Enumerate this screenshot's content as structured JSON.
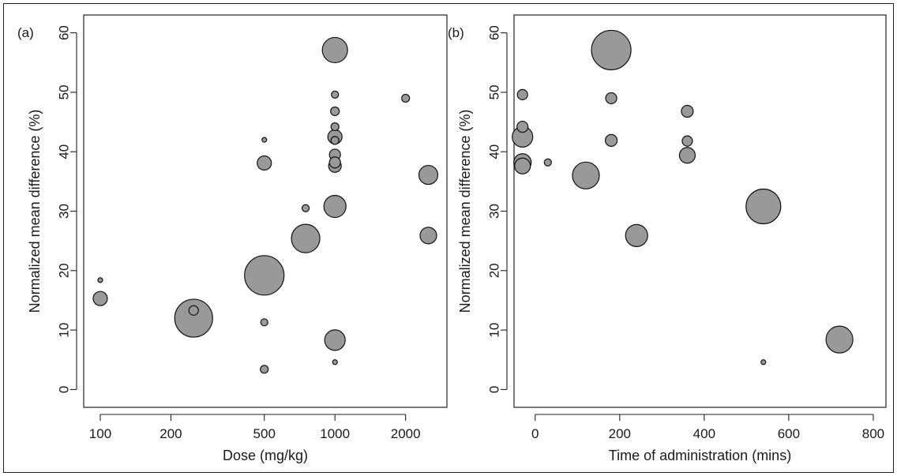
{
  "chart_data": [
    {
      "type": "scatter",
      "panel_label": "(a)",
      "title": "",
      "xlabel": "Dose (mg/kg)",
      "ylabel": "Normalized mean difference (%)",
      "x_scale": "log",
      "xlim": [
        85,
        3000
      ],
      "ylim": [
        -3,
        63
      ],
      "x_ticks": [
        100,
        200,
        500,
        1000,
        2000
      ],
      "x_tick_labels": [
        "100",
        "200",
        "500",
        "1000",
        "2000"
      ],
      "y_ticks": [
        0,
        10,
        20,
        30,
        40,
        50,
        60
      ],
      "y_tick_labels": [
        "0",
        "10",
        "20",
        "30",
        "40",
        "50",
        "60"
      ],
      "grid": false,
      "legend": "none",
      "marker_color": "#999999",
      "points": [
        {
          "x": 100,
          "y": 18.4,
          "size": 3
        },
        {
          "x": 100,
          "y": 15.3,
          "size": 9
        },
        {
          "x": 250,
          "y": 12.0,
          "size": 24
        },
        {
          "x": 250,
          "y": 13.3,
          "size": 6
        },
        {
          "x": 500,
          "y": 42.0,
          "size": 3
        },
        {
          "x": 500,
          "y": 38.1,
          "size": 9
        },
        {
          "x": 500,
          "y": 19.2,
          "size": 25
        },
        {
          "x": 500,
          "y": 11.3,
          "size": 4.5
        },
        {
          "x": 500,
          "y": 3.4,
          "size": 5
        },
        {
          "x": 750,
          "y": 30.5,
          "size": 4.5
        },
        {
          "x": 750,
          "y": 25.4,
          "size": 18
        },
        {
          "x": 1000,
          "y": 57.1,
          "size": 16
        },
        {
          "x": 1000,
          "y": 49.6,
          "size": 4.5
        },
        {
          "x": 1000,
          "y": 46.8,
          "size": 5.5
        },
        {
          "x": 1000,
          "y": 44.2,
          "size": 5
        },
        {
          "x": 1000,
          "y": 42.5,
          "size": 9
        },
        {
          "x": 1000,
          "y": 41.9,
          "size": 5
        },
        {
          "x": 1000,
          "y": 39.5,
          "size": 7
        },
        {
          "x": 1000,
          "y": 38.2,
          "size": 7
        },
        {
          "x": 1000,
          "y": 37.6,
          "size": 8
        },
        {
          "x": 1000,
          "y": 30.8,
          "size": 14
        },
        {
          "x": 1000,
          "y": 8.3,
          "size": 13
        },
        {
          "x": 1000,
          "y": 4.6,
          "size": 3
        },
        {
          "x": 2000,
          "y": 49.0,
          "size": 5
        },
        {
          "x": 2500,
          "y": 36.1,
          "size": 12
        },
        {
          "x": 2500,
          "y": 25.9,
          "size": 10.5
        }
      ]
    },
    {
      "type": "scatter",
      "panel_label": "(b)",
      "title": "",
      "xlabel": "Time of administration (mins)",
      "ylabel": "Normalized mean difference (%)",
      "xlim": [
        -50,
        830
      ],
      "ylim": [
        -3,
        63
      ],
      "x_ticks": [
        0,
        200,
        400,
        600,
        800
      ],
      "x_tick_labels": [
        "0",
        "200",
        "400",
        "600",
        "800"
      ],
      "y_ticks": [
        0,
        10,
        20,
        30,
        40,
        50,
        60
      ],
      "y_tick_labels": [
        "0",
        "10",
        "20",
        "30",
        "40",
        "50",
        "60"
      ],
      "grid": false,
      "legend": "none",
      "marker_color": "#999999",
      "points": [
        {
          "x": -30,
          "y": 49.6,
          "size": 6.5
        },
        {
          "x": -30,
          "y": 44.2,
          "size": 7
        },
        {
          "x": -30,
          "y": 42.5,
          "size": 13
        },
        {
          "x": -30,
          "y": 38.2,
          "size": 11
        },
        {
          "x": -30,
          "y": 37.6,
          "size": 10
        },
        {
          "x": 30,
          "y": 38.2,
          "size": 4.5
        },
        {
          "x": 120,
          "y": 36.0,
          "size": 17
        },
        {
          "x": 180,
          "y": 57.1,
          "size": 25
        },
        {
          "x": 180,
          "y": 49.0,
          "size": 7
        },
        {
          "x": 180,
          "y": 41.9,
          "size": 7.5
        },
        {
          "x": 240,
          "y": 25.9,
          "size": 14
        },
        {
          "x": 360,
          "y": 46.8,
          "size": 7.5
        },
        {
          "x": 360,
          "y": 41.8,
          "size": 6.5
        },
        {
          "x": 360,
          "y": 39.4,
          "size": 10
        },
        {
          "x": 540,
          "y": 30.8,
          "size": 22
        },
        {
          "x": 540,
          "y": 4.6,
          "size": 3
        },
        {
          "x": 720,
          "y": 8.4,
          "size": 17
        }
      ]
    }
  ]
}
